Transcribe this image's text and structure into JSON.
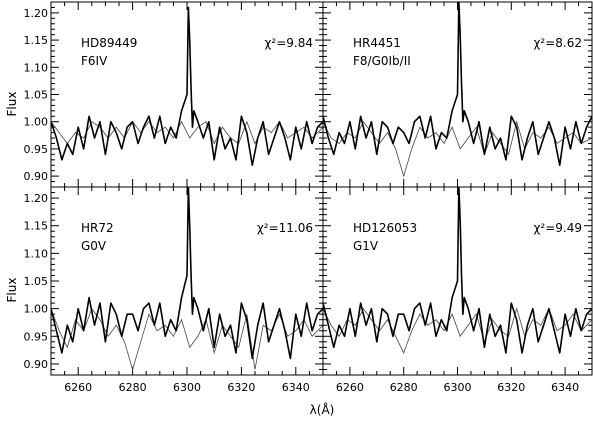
{
  "chart_data": {
    "type": "line",
    "layout": "2x2 grid of panels sharing axes",
    "xlabel": "λ(Å)",
    "ylabel": "Flux",
    "xlim": [
      6250,
      6350
    ],
    "ylim": [
      0.88,
      1.22
    ],
    "xticks": [
      6260,
      6280,
      6300,
      6320,
      6340
    ],
    "yticks": [
      0.9,
      0.95,
      1.0,
      1.05,
      1.1,
      1.15,
      1.2
    ],
    "ytick_labels": [
      "0.90",
      "0.95",
      "1.00",
      "1.05",
      "1.10",
      "1.15",
      "1.20"
    ],
    "grid": false,
    "panels": [
      {
        "star": "HD89449",
        "sptype": "F6IV",
        "chi_label": "χ²=9.84",
        "observed": {
          "x": [
            6250,
            6252,
            6254,
            6256,
            6258,
            6260,
            6262,
            6264,
            6266,
            6268,
            6270,
            6272,
            6274,
            6276,
            6278,
            6280,
            6282,
            6284,
            6286,
            6288,
            6290,
            6292,
            6294,
            6296,
            6298,
            6300,
            6300.5,
            6301,
            6301.5,
            6302,
            6302.5,
            6304,
            6306,
            6308,
            6310,
            6312,
            6314,
            6316,
            6318,
            6320,
            6322,
            6324,
            6326,
            6328,
            6330,
            6332,
            6334,
            6336,
            6338,
            6340,
            6342,
            6344,
            6346,
            6348,
            6350
          ],
          "y": [
            1.0,
            0.97,
            0.93,
            0.96,
            0.94,
            0.99,
            0.95,
            1.01,
            0.97,
            1.0,
            0.94,
            1.0,
            0.98,
            0.95,
            0.99,
            1.0,
            0.96,
            0.99,
            1.01,
            0.97,
            1.01,
            0.96,
            0.99,
            0.97,
            1.02,
            1.05,
            1.21,
            1.15,
            1.06,
            0.99,
            1.02,
            1.0,
            0.97,
            1.0,
            0.93,
            0.99,
            0.95,
            0.97,
            0.93,
            1.01,
            0.98,
            0.92,
            0.97,
            1.0,
            0.94,
            0.97,
            1.0,
            0.97,
            0.93,
            0.99,
            0.95,
            1.0,
            0.96,
            0.99,
            1.0
          ]
        },
        "model": {
          "x": [
            6250,
            6253,
            6256,
            6259,
            6262,
            6265,
            6268,
            6271,
            6274,
            6277,
            6280,
            6283,
            6286,
            6289,
            6292,
            6295,
            6298,
            6301,
            6304,
            6307,
            6310,
            6313,
            6316,
            6319,
            6322,
            6325,
            6328,
            6331,
            6334,
            6337,
            6340,
            6343,
            6346,
            6350
          ],
          "y": [
            1.0,
            0.98,
            0.96,
            0.98,
            0.97,
            1.0,
            0.99,
            0.97,
            0.99,
            0.97,
            1.0,
            0.98,
            1.0,
            0.98,
            0.99,
            0.97,
            1.0,
            0.97,
            0.99,
            1.0,
            0.96,
            0.99,
            0.97,
            0.96,
            1.0,
            0.96,
            0.99,
            0.98,
            1.0,
            0.97,
            0.98,
            0.99,
            0.97,
            0.99
          ]
        }
      },
      {
        "star": "HR4451",
        "sptype": "F8/G0Ib/II",
        "chi_label": "χ²=8.62",
        "observed": {
          "x": [
            6250,
            6252,
            6254,
            6256,
            6258,
            6260,
            6262,
            6264,
            6266,
            6268,
            6270,
            6272,
            6274,
            6276,
            6278,
            6280,
            6282,
            6284,
            6286,
            6288,
            6290,
            6292,
            6294,
            6296,
            6298,
            6300,
            6300.5,
            6301,
            6301.5,
            6302,
            6302.5,
            6304,
            6306,
            6308,
            6310,
            6312,
            6314,
            6316,
            6318,
            6320,
            6322,
            6324,
            6326,
            6328,
            6330,
            6332,
            6334,
            6336,
            6338,
            6340,
            6342,
            6344,
            6346,
            6348,
            6350
          ],
          "y": [
            1.01,
            0.97,
            0.94,
            0.98,
            0.96,
            1.0,
            0.95,
            1.01,
            0.97,
            1.0,
            0.94,
            1.0,
            0.99,
            0.96,
            0.99,
            0.98,
            0.96,
            1.0,
            1.01,
            0.97,
            1.01,
            0.95,
            0.98,
            0.97,
            1.02,
            1.05,
            1.22,
            1.16,
            1.07,
            1.0,
            1.02,
            1.0,
            0.96,
            1.0,
            0.94,
            0.99,
            0.95,
            0.97,
            0.93,
            1.01,
            0.99,
            0.93,
            0.97,
            1.0,
            0.94,
            0.97,
            1.0,
            0.97,
            0.92,
            0.99,
            0.95,
            1.0,
            0.96,
            0.99,
            1.01
          ]
        },
        "model": {
          "x": [
            6250,
            6253,
            6256,
            6259,
            6262,
            6265,
            6268,
            6271,
            6274,
            6277,
            6280,
            6283,
            6286,
            6289,
            6292,
            6295,
            6298,
            6301,
            6304,
            6307,
            6310,
            6313,
            6316,
            6319,
            6322,
            6325,
            6328,
            6331,
            6334,
            6337,
            6340,
            6343,
            6346,
            6350
          ],
          "y": [
            1.0,
            0.97,
            0.96,
            0.98,
            0.97,
            1.0,
            0.98,
            0.96,
            0.98,
            0.95,
            0.9,
            0.95,
            0.99,
            0.97,
            0.98,
            0.96,
            0.99,
            0.95,
            0.97,
            0.99,
            0.94,
            0.98,
            0.96,
            0.94,
            1.0,
            0.95,
            0.98,
            0.97,
            0.99,
            0.96,
            0.97,
            0.98,
            0.96,
            0.97
          ]
        }
      },
      {
        "star": "HR72",
        "sptype": "G0V",
        "chi_label": "χ²=11.06",
        "observed": {
          "x": [
            6250,
            6252,
            6254,
            6256,
            6258,
            6260,
            6262,
            6264,
            6266,
            6268,
            6270,
            6272,
            6274,
            6276,
            6278,
            6280,
            6282,
            6284,
            6286,
            6288,
            6290,
            6292,
            6294,
            6296,
            6298,
            6300,
            6300.5,
            6301,
            6301.5,
            6302,
            6302.5,
            6304,
            6306,
            6308,
            6310,
            6312,
            6314,
            6316,
            6318,
            6320,
            6322,
            6324,
            6326,
            6328,
            6330,
            6332,
            6334,
            6336,
            6338,
            6340,
            6342,
            6344,
            6346,
            6348,
            6350
          ],
          "y": [
            1.0,
            0.96,
            0.92,
            0.97,
            0.94,
            1.0,
            0.96,
            1.02,
            0.97,
            1.01,
            0.94,
            1.01,
            0.99,
            0.95,
            0.99,
            0.99,
            0.96,
            1.0,
            1.01,
            0.97,
            1.01,
            0.95,
            0.98,
            0.96,
            1.02,
            1.06,
            1.22,
            1.15,
            1.06,
            0.99,
            1.02,
            1.0,
            0.96,
            1.0,
            0.93,
            0.99,
            0.95,
            0.97,
            0.92,
            1.01,
            0.98,
            0.91,
            0.97,
            1.01,
            0.94,
            0.97,
            1.0,
            0.96,
            0.91,
            0.99,
            0.95,
            1.01,
            0.96,
            0.99,
            1.0
          ]
        },
        "model": {
          "x": [
            6250,
            6253,
            6256,
            6259,
            6262,
            6265,
            6268,
            6271,
            6274,
            6277,
            6280,
            6283,
            6286,
            6289,
            6292,
            6295,
            6298,
            6301,
            6304,
            6307,
            6310,
            6313,
            6316,
            6319,
            6322,
            6325,
            6328,
            6331,
            6334,
            6337,
            6340,
            6343,
            6346,
            6350
          ],
          "y": [
            1.0,
            0.96,
            0.93,
            0.98,
            0.96,
            1.0,
            0.98,
            0.95,
            0.97,
            0.94,
            0.89,
            0.94,
            0.99,
            0.96,
            0.97,
            0.95,
            0.98,
            0.93,
            0.95,
            0.98,
            0.92,
            0.97,
            0.95,
            0.93,
            0.99,
            0.89,
            0.97,
            0.96,
            0.99,
            0.95,
            0.96,
            0.98,
            0.95,
            0.97
          ]
        }
      },
      {
        "star": "HD126053",
        "sptype": "G1V",
        "chi_label": "χ²=9.49",
        "observed": {
          "x": [
            6250,
            6252,
            6254,
            6256,
            6258,
            6260,
            6262,
            6264,
            6266,
            6268,
            6270,
            6272,
            6274,
            6276,
            6278,
            6280,
            6282,
            6284,
            6286,
            6288,
            6290,
            6292,
            6294,
            6296,
            6298,
            6300,
            6300.5,
            6301,
            6301.5,
            6302,
            6302.5,
            6304,
            6306,
            6308,
            6310,
            6312,
            6314,
            6316,
            6318,
            6320,
            6322,
            6324,
            6326,
            6328,
            6330,
            6332,
            6334,
            6336,
            6338,
            6340,
            6342,
            6344,
            6346,
            6348,
            6350
          ],
          "y": [
            1.01,
            0.97,
            0.93,
            0.97,
            0.95,
            1.0,
            0.95,
            1.01,
            0.97,
            1.0,
            0.94,
            1.0,
            0.99,
            0.95,
            0.99,
            0.99,
            0.96,
            1.0,
            1.01,
            0.97,
            1.01,
            0.95,
            0.98,
            0.96,
            1.02,
            1.05,
            1.22,
            1.16,
            1.06,
            0.99,
            1.02,
            1.0,
            0.96,
            1.0,
            0.93,
            0.99,
            0.95,
            0.97,
            0.92,
            1.01,
            0.98,
            0.92,
            0.97,
            1.0,
            0.94,
            0.97,
            1.0,
            0.96,
            0.92,
            0.99,
            0.95,
            1.0,
            0.96,
            0.99,
            1.0
          ]
        },
        "model": {
          "x": [
            6250,
            6253,
            6256,
            6259,
            6262,
            6265,
            6268,
            6271,
            6274,
            6277,
            6280,
            6283,
            6286,
            6289,
            6292,
            6295,
            6298,
            6301,
            6304,
            6307,
            6310,
            6313,
            6316,
            6319,
            6322,
            6325,
            6328,
            6331,
            6334,
            6337,
            6340,
            6343,
            6346,
            6350
          ],
          "y": [
            1.0,
            0.97,
            0.95,
            0.98,
            0.97,
            1.0,
            0.98,
            0.96,
            0.98,
            0.95,
            0.92,
            0.96,
            0.99,
            0.97,
            0.98,
            0.96,
            0.99,
            0.95,
            0.97,
            0.99,
            0.94,
            0.98,
            0.96,
            0.95,
            1.0,
            0.95,
            0.98,
            0.97,
            1.0,
            0.96,
            0.97,
            0.99,
            0.96,
            0.98
          ]
        }
      }
    ]
  }
}
